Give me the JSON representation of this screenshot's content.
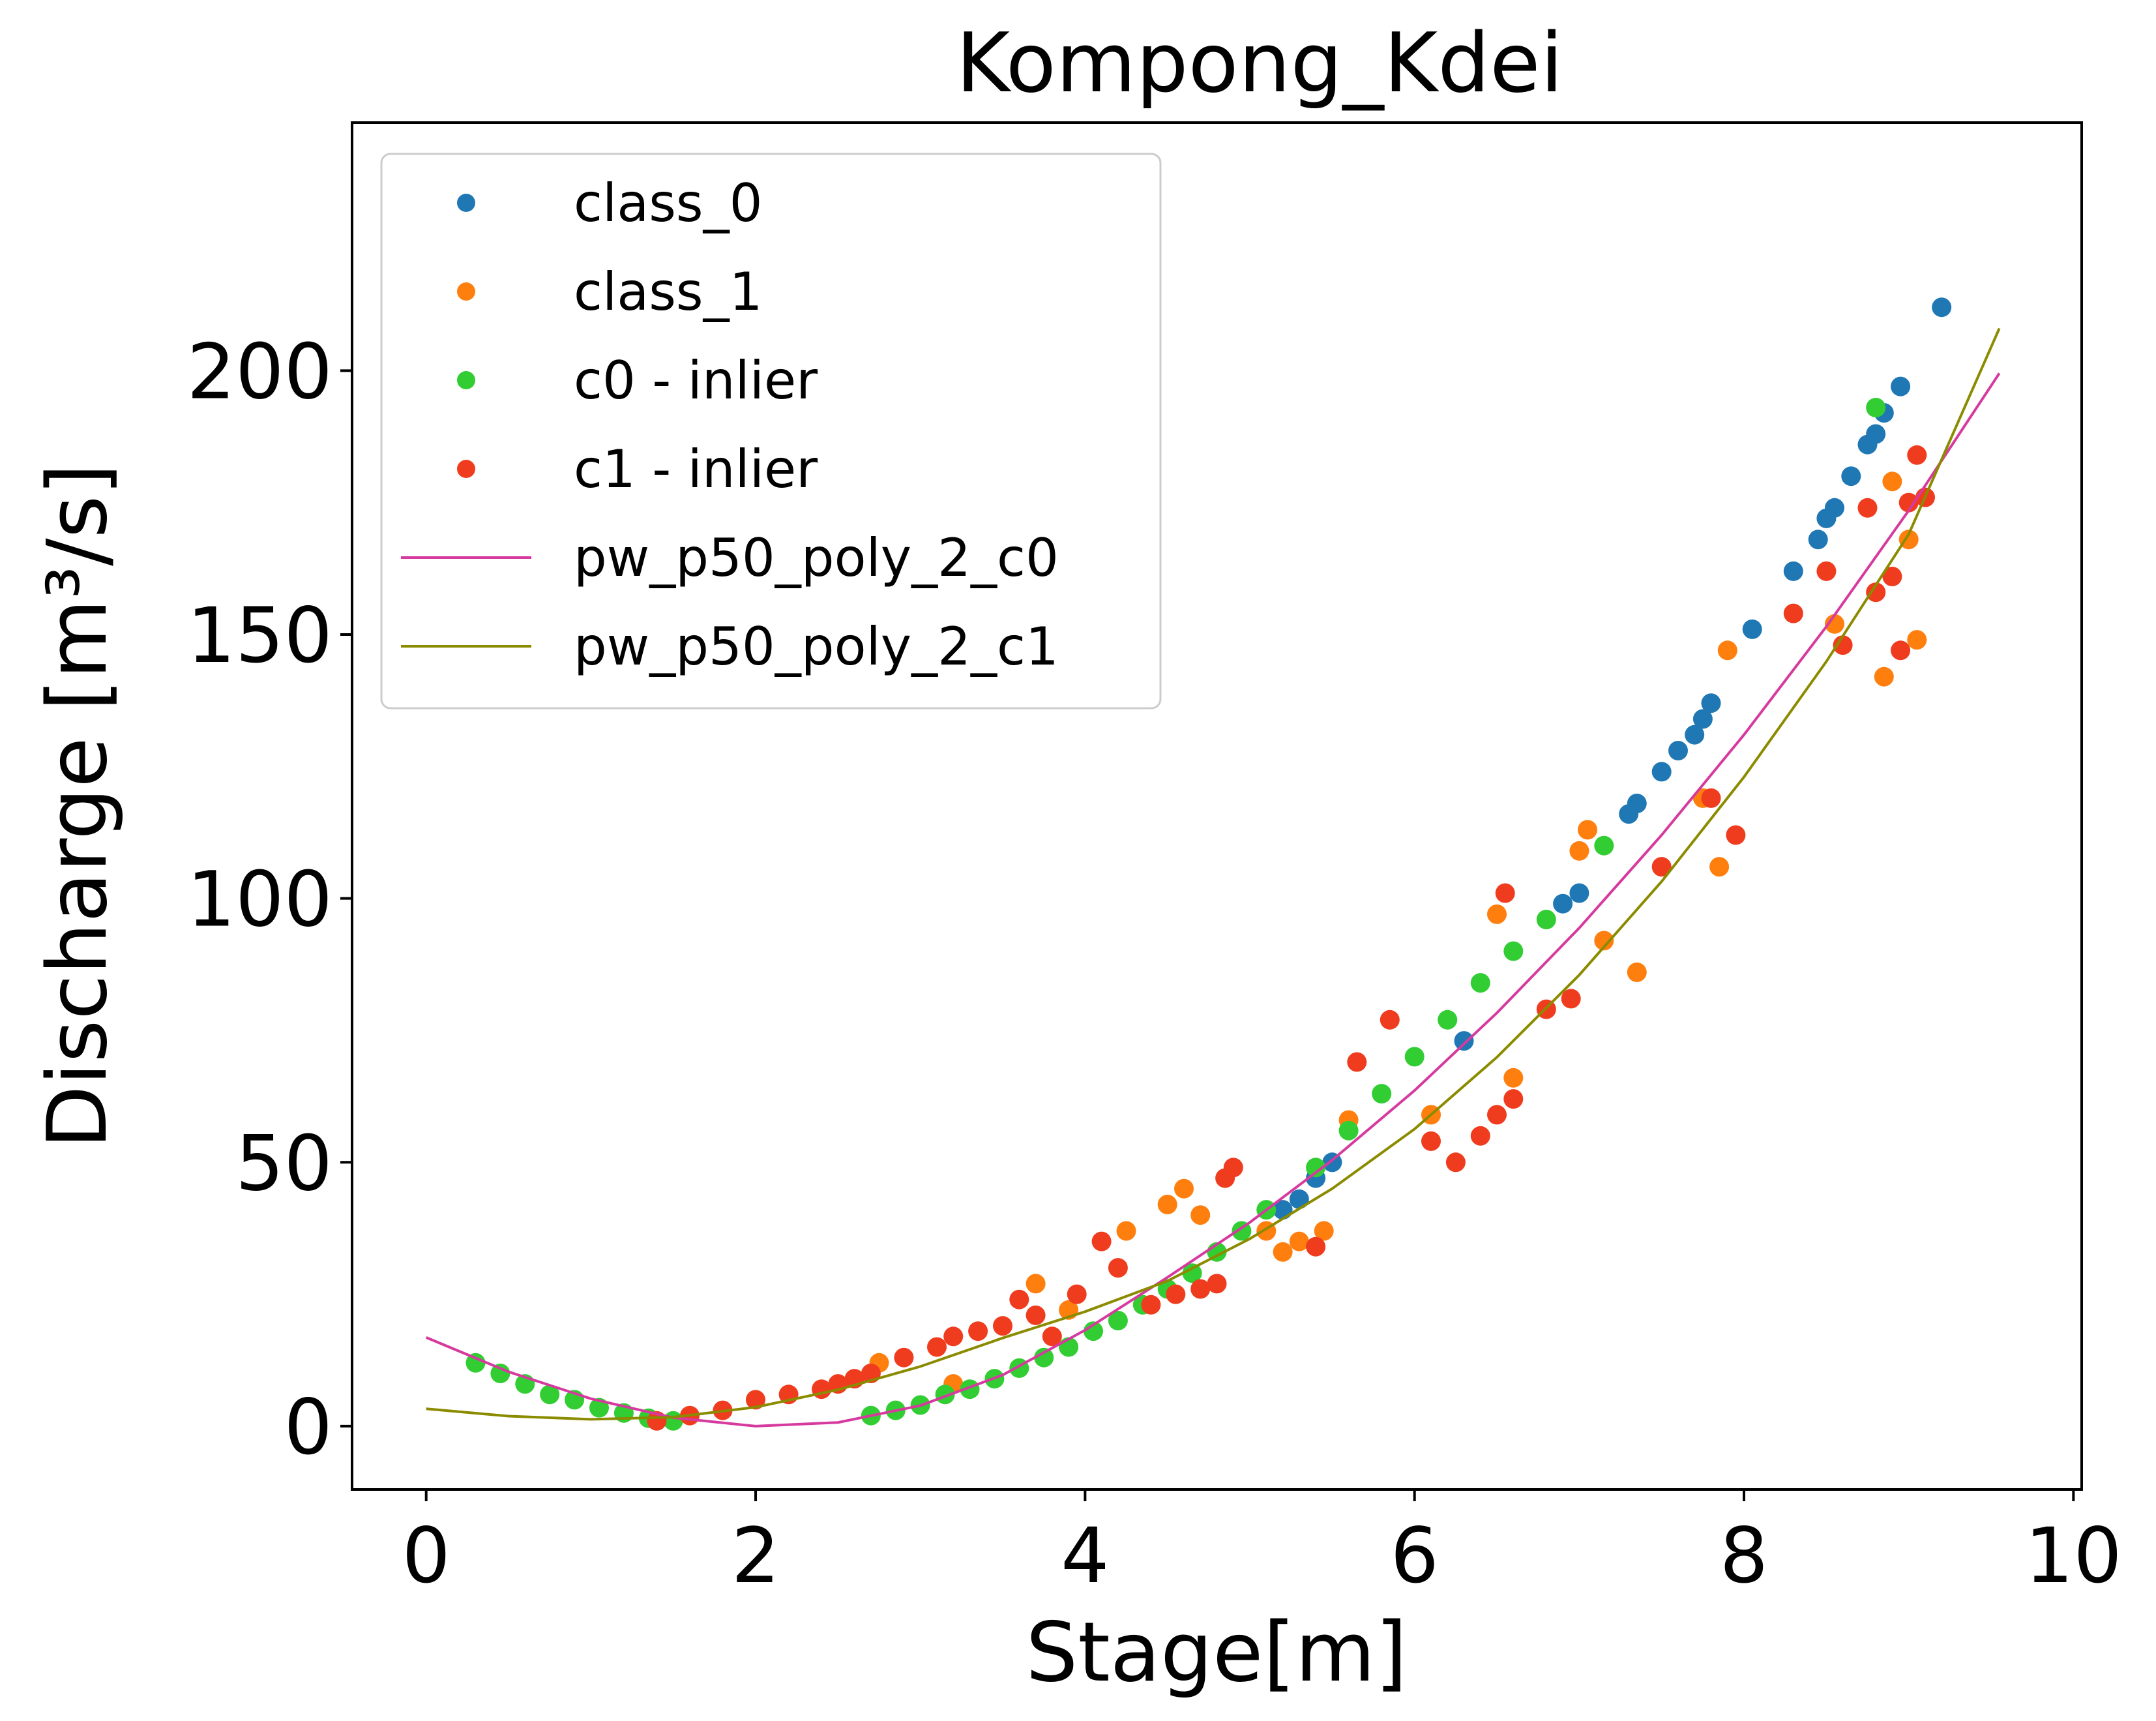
{
  "chart_data": {
    "type": "scatter",
    "title": "Kompong_Kdei",
    "xlabel": "Stage[m]",
    "ylabel": "Discharge [m³/s]",
    "xlim": [
      -0.45,
      10.05
    ],
    "ylim": [
      -12,
      247
    ],
    "xticks": [
      0,
      2,
      4,
      6,
      8,
      10
    ],
    "yticks": [
      0,
      50,
      100,
      150,
      200
    ],
    "legend_position": "upper-left",
    "series": [
      {
        "name": "class_0",
        "kind": "scatter",
        "color": "#1f77b4",
        "x": [
          5.2,
          5.3,
          5.4,
          5.5,
          6.3,
          6.9,
          7.0,
          7.3,
          7.35,
          7.5,
          7.6,
          7.7,
          7.75,
          7.8,
          8.05,
          8.3,
          8.45,
          8.5,
          8.55,
          8.65,
          8.75,
          8.8,
          8.85,
          8.95,
          9.2
        ],
        "y": [
          41,
          43,
          47,
          50,
          73,
          99,
          101,
          116,
          118,
          124,
          128,
          131,
          134,
          137,
          151,
          162,
          168,
          172,
          174,
          180,
          186,
          188,
          192,
          197,
          212
        ]
      },
      {
        "name": "class_1",
        "kind": "scatter",
        "color": "#ff7f0e",
        "x": [
          2.75,
          3.2,
          3.7,
          3.9,
          4.25,
          4.5,
          4.6,
          4.7,
          5.1,
          5.2,
          5.3,
          5.45,
          5.6,
          6.1,
          6.5,
          6.6,
          7.0,
          7.05,
          7.15,
          7.35,
          7.75,
          7.85,
          7.9,
          8.55,
          8.85,
          8.9,
          9.0,
          9.05
        ],
        "y": [
          12,
          8,
          27,
          22,
          37,
          42,
          45,
          40,
          37,
          33,
          35,
          37,
          58,
          59,
          97,
          66,
          109,
          113,
          92,
          86,
          119,
          106,
          147,
          152,
          142,
          179,
          168,
          149
        ]
      },
      {
        "name": "c0 - inlier",
        "kind": "scatter",
        "color": "#32cd32",
        "x": [
          0.3,
          0.45,
          0.6,
          0.75,
          0.9,
          1.05,
          1.2,
          1.35,
          1.5,
          2.7,
          2.85,
          3.0,
          3.15,
          3.3,
          3.45,
          3.6,
          3.75,
          3.9,
          4.05,
          4.2,
          4.35,
          4.5,
          4.65,
          4.8,
          4.95,
          5.1,
          5.4,
          5.6,
          5.8,
          6.0,
          6.2,
          6.4,
          6.6,
          6.8,
          7.15,
          8.8
        ],
        "y": [
          12,
          10,
          8,
          6,
          5,
          3.5,
          2.5,
          1.5,
          1,
          2,
          3,
          4,
          6,
          7,
          9,
          11,
          13,
          15,
          18,
          20,
          23,
          26,
          29,
          33,
          37,
          41,
          49,
          56,
          63,
          70,
          77,
          84,
          90,
          96,
          110,
          193
        ]
      },
      {
        "name": "c1 - inlier",
        "kind": "scatter",
        "color": "#f03c1e",
        "x": [
          1.4,
          1.6,
          1.8,
          2.0,
          2.2,
          2.4,
          2.5,
          2.6,
          2.7,
          2.9,
          3.1,
          3.2,
          3.35,
          3.5,
          3.6,
          3.7,
          3.8,
          3.95,
          4.1,
          4.2,
          4.4,
          4.55,
          4.7,
          4.8,
          4.85,
          4.9,
          5.4,
          5.65,
          5.85,
          6.1,
          6.25,
          6.4,
          6.5,
          6.55,
          6.6,
          6.8,
          6.95,
          7.5,
          7.8,
          7.95,
          8.3,
          8.5,
          8.6,
          8.75,
          8.8,
          8.9,
          8.95,
          9.0,
          9.05,
          9.1
        ],
        "y": [
          1,
          2,
          3,
          5,
          6,
          7,
          8,
          9,
          10,
          13,
          15,
          17,
          18,
          19,
          24,
          21,
          17,
          25,
          35,
          30,
          23,
          25,
          26,
          27,
          47,
          49,
          34,
          69,
          77,
          54,
          50,
          55,
          59,
          101,
          62,
          79,
          81,
          106,
          119,
          112,
          154,
          162,
          148,
          174,
          158,
          161,
          147,
          175,
          184,
          176
        ]
      },
      {
        "name": "pw_p50_poly_2_c0",
        "kind": "line",
        "color": "#d63a9e",
        "x": [
          0,
          0.5,
          1.0,
          1.5,
          2.0,
          2.5,
          3.0,
          3.5,
          4.0,
          4.5,
          5.0,
          5.5,
          6.0,
          6.5,
          7.0,
          7.5,
          8.0,
          8.5,
          9.0,
          9.55
        ],
        "y": [
          16.8,
          10.3,
          5.2,
          1.6,
          0.0,
          0.7,
          3.9,
          9.7,
          18.2,
          28.2,
          38.6,
          50.4,
          63.6,
          78.3,
          94.4,
          112.0,
          131.0,
          151.5,
          173.5,
          199.5
        ]
      },
      {
        "name": "pw_p50_poly_2_c1",
        "kind": "line",
        "color": "#8b8b00",
        "x": [
          0,
          0.5,
          1.0,
          1.5,
          2.0,
          2.5,
          3.0,
          3.5,
          4.0,
          4.5,
          5.0,
          5.5,
          6.0,
          6.5,
          7.0,
          7.5,
          8.0,
          8.5,
          9.0,
          9.55
        ],
        "y": [
          3.3,
          1.9,
          1.3,
          1.7,
          3.6,
          6.9,
          11.3,
          16.7,
          21.7,
          27.5,
          35.5,
          45.0,
          56.3,
          69.9,
          85.5,
          103.2,
          123.0,
          144.9,
          169.0,
          208.0
        ]
      }
    ]
  }
}
